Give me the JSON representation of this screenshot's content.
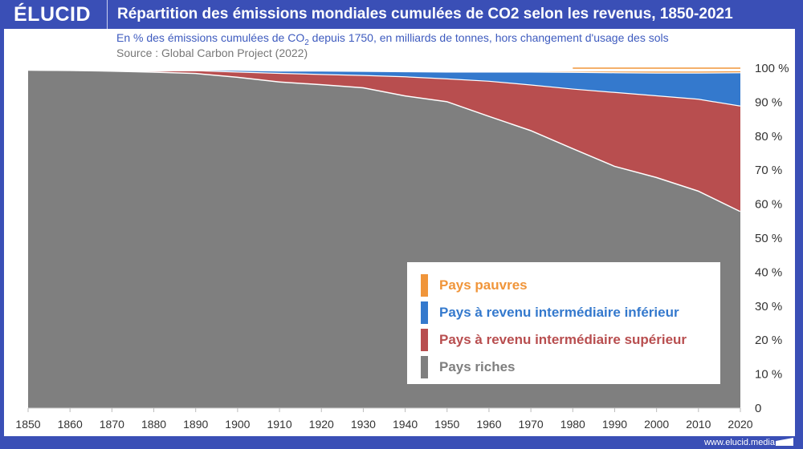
{
  "header": {
    "logo": "ÉLUCID",
    "title": "Répartition des émissions mondiales cumulées de CO2 selon les revenus, 1850-2021"
  },
  "subtitle_pre": "En % des émissions cumulées de CO",
  "subtitle_sub": "2",
  "subtitle_post": " depuis 1750, en milliards de tonnes, hors changement d'usage des sols",
  "source": "Source : Global Carbon Project (2022)",
  "footer": "www.elucid.media",
  "chart_data": {
    "type": "area",
    "stacked": true,
    "title": "Répartition des émissions mondiales cumulées de CO2 selon les revenus, 1850-2021",
    "xlabel": "",
    "ylabel": "",
    "x": [
      1850,
      1860,
      1870,
      1880,
      1890,
      1900,
      1910,
      1920,
      1930,
      1940,
      1950,
      1960,
      1970,
      1980,
      1990,
      2000,
      2010,
      2021
    ],
    "series": [
      {
        "name": "Pays riches",
        "color": "#7f7f7f",
        "values": [
          99.6,
          99.5,
          99.3,
          99.0,
          98.6,
          97.5,
          96.1,
          95.3,
          94.4,
          92.0,
          90.3,
          86.0,
          81.8,
          76.5,
          71.3,
          68.0,
          64.0,
          58.0
        ]
      },
      {
        "name": "Pays à revenu intermédiaire supérieur",
        "color": "#b84e4f",
        "values": [
          0.0,
          0.0,
          0.1,
          0.3,
          0.8,
          1.5,
          2.5,
          3.0,
          3.6,
          5.6,
          6.7,
          10.3,
          13.4,
          17.5,
          21.7,
          24.0,
          27.0,
          31.0
        ]
      },
      {
        "name": "Pays à revenu intermédiaire inférieur",
        "color": "#3479cd",
        "values": [
          0.0,
          0.0,
          0.0,
          0.1,
          0.2,
          0.5,
          0.7,
          1.0,
          1.2,
          1.5,
          2.0,
          2.7,
          3.8,
          4.9,
          5.8,
          6.7,
          7.7,
          9.8
        ]
      },
      {
        "name": "Pays pauvres",
        "color": "#f0953a",
        "values": [
          0.0,
          0.0,
          0.0,
          0.0,
          0.0,
          0.0,
          0.0,
          0.0,
          0.0,
          0.0,
          0.0,
          0.0,
          0.0,
          0.1,
          0.2,
          0.3,
          0.3,
          0.3
        ]
      }
    ],
    "legend_order": [
      "Pays pauvres",
      "Pays à revenu intermédiaire inférieur",
      "Pays à revenu intermédiaire supérieur",
      "Pays riches"
    ],
    "xticks": [
      "1850",
      "1860",
      "1870",
      "1880",
      "1890",
      "1900",
      "1910",
      "1920",
      "1930",
      "1940",
      "1950",
      "1960",
      "1970",
      "1980",
      "1990",
      "2000",
      "2010",
      "2020"
    ],
    "yticks": [
      "0",
      "10 %",
      "20 %",
      "30 %",
      "40 %",
      "50 %",
      "60 %",
      "70 %",
      "80 %",
      "90 %",
      "100 %"
    ],
    "xlim": [
      1850,
      2021
    ],
    "ylim": [
      0,
      100
    ],
    "grid": false,
    "legend_position": "bottom-right"
  }
}
